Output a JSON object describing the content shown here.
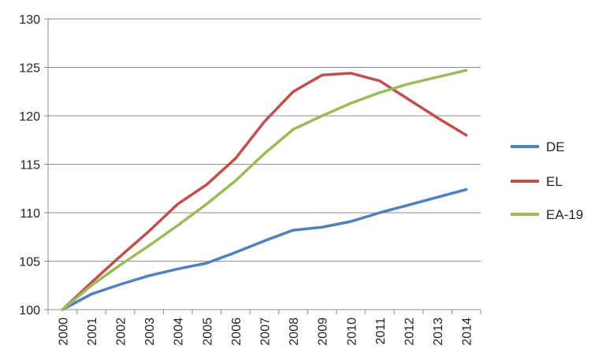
{
  "chart_data": {
    "type": "line",
    "title": "",
    "xlabel": "",
    "ylabel": "",
    "x": [
      "2000",
      "2001",
      "2002",
      "2003",
      "2004",
      "2005",
      "2006",
      "2007",
      "2008",
      "2009",
      "2010",
      "2011",
      "2012",
      "2013",
      "2014"
    ],
    "ylim": [
      100,
      130
    ],
    "yticks": [
      100,
      105,
      110,
      115,
      120,
      125,
      130
    ],
    "grid": true,
    "legend_position": "right",
    "series": [
      {
        "name": "DE",
        "color": "#4f81bd",
        "values": [
          100,
          101.6,
          102.6,
          103.5,
          104.2,
          104.8,
          105.9,
          107.1,
          108.2,
          108.5,
          109.1,
          110.0,
          110.8,
          111.6,
          112.4
        ]
      },
      {
        "name": "EL",
        "color": "#c0504d",
        "values": [
          100,
          102.8,
          105.5,
          108.1,
          110.9,
          112.9,
          115.6,
          119.4,
          122.5,
          124.2,
          124.4,
          123.6,
          121.7,
          119.8,
          118.0
        ]
      },
      {
        "name": "EA-19",
        "color": "#9bbb59",
        "values": [
          100,
          102.5,
          104.6,
          106.6,
          108.7,
          110.9,
          113.3,
          116.1,
          118.6,
          120.0,
          121.3,
          122.4,
          123.3,
          124.0,
          124.7
        ]
      }
    ]
  }
}
